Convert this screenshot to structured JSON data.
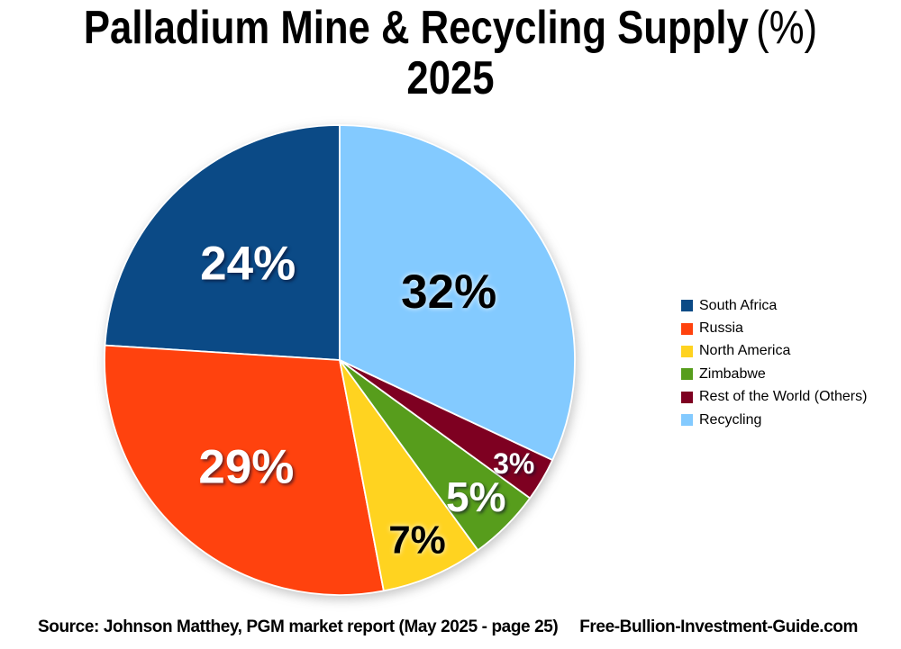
{
  "title": {
    "main": "Palladium Mine & Recycling Supply",
    "suffix": "(%)",
    "year": "2025"
  },
  "chart_data": {
    "type": "pie",
    "title": "Palladium Mine & Recycling Supply (%) 2025",
    "unit": "%",
    "start_angle_deg": 90,
    "direction": "counterclockwise",
    "legend_position": "right",
    "slices": [
      {
        "label": "South Africa",
        "value": 24,
        "data_label": "24%",
        "color": "#0b4a86",
        "label_color": "#ffffff"
      },
      {
        "label": "Russia",
        "value": 29,
        "data_label": "29%",
        "color": "#ff420e",
        "label_color": "#ffffff"
      },
      {
        "label": "North America",
        "value": 7,
        "data_label": "7%",
        "color": "#ffd320",
        "label_color": "#000000"
      },
      {
        "label": "Zimbabwe",
        "value": 5,
        "data_label": "5%",
        "color": "#579d1c",
        "label_color": "#ffffff"
      },
      {
        "label": "Rest of the World (Others)",
        "value": 3,
        "data_label": "3%",
        "color": "#7e0021",
        "label_color": "#ffffff"
      },
      {
        "label": "Recycling",
        "value": 32,
        "data_label": "32%",
        "color": "#83caff",
        "label_color": "#000000"
      }
    ]
  },
  "footer": {
    "source": "Source: Johnson Matthey, PGM market report (May 2025 - page 25)",
    "site": "Free-Bullion-Investment-Guide.com"
  }
}
